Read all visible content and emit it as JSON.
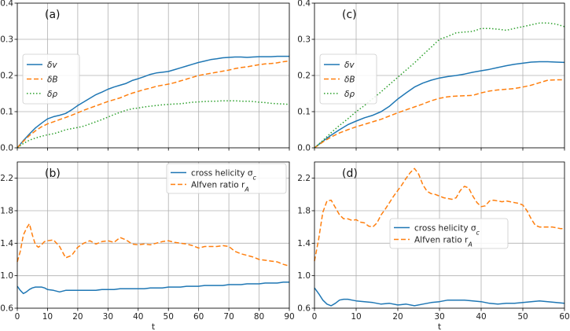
{
  "chart_data": [
    {
      "panel": "a",
      "panel_label": "(a)",
      "type": "line",
      "xlim": [
        0,
        90
      ],
      "ylim": [
        0,
        0.4
      ],
      "xticks": [
        0,
        10,
        20,
        30,
        40,
        50,
        60,
        70,
        80,
        90
      ],
      "yticks": [
        0.0,
        0.1,
        0.2,
        0.3,
        0.4
      ],
      "ytick_labels": [
        "0.0",
        "0.1",
        "0.2",
        "0.3",
        "0.4"
      ],
      "show_xtick_labels": false,
      "xlabel": "",
      "grid": true,
      "legend_position": "center-left",
      "series": [
        {
          "name": "δv",
          "color": "#1f77b4",
          "style": "solid",
          "x": [
            0,
            2,
            4,
            6,
            8,
            10,
            12,
            14,
            16,
            18,
            20,
            22,
            24,
            26,
            28,
            30,
            32,
            34,
            36,
            38,
            40,
            42,
            44,
            46,
            48,
            50,
            52,
            54,
            56,
            58,
            60,
            62,
            64,
            66,
            68,
            70,
            72,
            74,
            76,
            78,
            80,
            82,
            84,
            86,
            88,
            90
          ],
          "y": [
            0,
            0.02,
            0.038,
            0.055,
            0.068,
            0.08,
            0.086,
            0.09,
            0.095,
            0.105,
            0.117,
            0.127,
            0.137,
            0.147,
            0.154,
            0.162,
            0.168,
            0.173,
            0.178,
            0.186,
            0.191,
            0.197,
            0.203,
            0.207,
            0.209,
            0.211,
            0.216,
            0.221,
            0.226,
            0.231,
            0.236,
            0.24,
            0.244,
            0.246,
            0.249,
            0.25,
            0.251,
            0.251,
            0.25,
            0.251,
            0.252,
            0.252,
            0.252,
            0.253,
            0.253,
            0.253
          ]
        },
        {
          "name": "δB",
          "color": "#ff7f0e",
          "style": "dashed",
          "x": [
            0,
            2,
            4,
            6,
            8,
            10,
            12,
            14,
            16,
            18,
            20,
            22,
            24,
            26,
            28,
            30,
            32,
            34,
            36,
            38,
            40,
            42,
            44,
            46,
            48,
            50,
            52,
            54,
            56,
            58,
            60,
            62,
            64,
            66,
            68,
            70,
            72,
            74,
            76,
            78,
            80,
            82,
            84,
            86,
            88,
            90
          ],
          "y": [
            0,
            0.018,
            0.034,
            0.047,
            0.058,
            0.066,
            0.072,
            0.078,
            0.084,
            0.09,
            0.097,
            0.104,
            0.11,
            0.116,
            0.122,
            0.128,
            0.133,
            0.138,
            0.145,
            0.151,
            0.156,
            0.161,
            0.165,
            0.17,
            0.173,
            0.176,
            0.18,
            0.185,
            0.19,
            0.195,
            0.2,
            0.203,
            0.206,
            0.209,
            0.212,
            0.215,
            0.219,
            0.222,
            0.224,
            0.227,
            0.23,
            0.232,
            0.233,
            0.235,
            0.238,
            0.24
          ]
        },
        {
          "name": "δρ",
          "color": "#2ca02c",
          "style": "dotted",
          "x": [
            0,
            2,
            4,
            6,
            8,
            10,
            12,
            14,
            16,
            18,
            20,
            22,
            24,
            26,
            28,
            30,
            32,
            34,
            36,
            38,
            40,
            42,
            44,
            46,
            48,
            50,
            52,
            54,
            56,
            58,
            60,
            62,
            64,
            66,
            68,
            70,
            72,
            74,
            76,
            78,
            80,
            82,
            84,
            86,
            88,
            90
          ],
          "y": [
            0,
            0.012,
            0.021,
            0.027,
            0.032,
            0.036,
            0.039,
            0.044,
            0.05,
            0.053,
            0.056,
            0.06,
            0.066,
            0.072,
            0.078,
            0.085,
            0.092,
            0.098,
            0.104,
            0.108,
            0.11,
            0.113,
            0.115,
            0.117,
            0.119,
            0.12,
            0.121,
            0.122,
            0.124,
            0.126,
            0.127,
            0.128,
            0.129,
            0.129,
            0.13,
            0.13,
            0.13,
            0.129,
            0.129,
            0.128,
            0.126,
            0.125,
            0.123,
            0.122,
            0.121,
            0.12
          ]
        }
      ]
    },
    {
      "panel": "b",
      "panel_label": "(b)",
      "type": "line",
      "xlim": [
        0,
        90
      ],
      "ylim": [
        0.6,
        2.4
      ],
      "xticks": [
        0,
        10,
        20,
        30,
        40,
        50,
        60,
        70,
        80,
        90
      ],
      "yticks": [
        0.6,
        1.0,
        1.4,
        1.8,
        2.2
      ],
      "ytick_labels": [
        "0.6",
        "1.0",
        "1.4",
        "1.8",
        "2.2"
      ],
      "show_xtick_labels": true,
      "xlabel": "t",
      "grid": true,
      "legend_position": "top-right",
      "series": [
        {
          "name": "cross helicity σ_c",
          "color": "#1f77b4",
          "style": "solid",
          "x": [
            0,
            1,
            2,
            3,
            4,
            5,
            6,
            7,
            8,
            9,
            10,
            12,
            14,
            16,
            18,
            20,
            22,
            24,
            26,
            28,
            30,
            32,
            34,
            36,
            38,
            40,
            42,
            44,
            46,
            48,
            50,
            52,
            54,
            56,
            58,
            60,
            62,
            64,
            66,
            68,
            70,
            72,
            74,
            76,
            78,
            80,
            82,
            84,
            86,
            88,
            90
          ],
          "y": [
            0.87,
            0.82,
            0.78,
            0.8,
            0.83,
            0.85,
            0.86,
            0.86,
            0.86,
            0.85,
            0.83,
            0.82,
            0.8,
            0.82,
            0.82,
            0.82,
            0.82,
            0.82,
            0.82,
            0.83,
            0.83,
            0.83,
            0.84,
            0.84,
            0.84,
            0.84,
            0.84,
            0.85,
            0.85,
            0.85,
            0.86,
            0.86,
            0.86,
            0.87,
            0.87,
            0.87,
            0.88,
            0.88,
            0.88,
            0.88,
            0.89,
            0.89,
            0.89,
            0.9,
            0.9,
            0.9,
            0.91,
            0.91,
            0.91,
            0.92,
            0.92
          ]
        },
        {
          "name": "Alfven ratio r_A",
          "color": "#ff7f0e",
          "style": "dashed",
          "x": [
            0,
            1,
            2,
            3,
            4,
            5,
            6,
            7,
            8,
            9,
            10,
            12,
            14,
            16,
            18,
            20,
            22,
            24,
            26,
            28,
            30,
            32,
            34,
            36,
            38,
            40,
            42,
            44,
            46,
            48,
            50,
            52,
            54,
            56,
            58,
            60,
            62,
            64,
            66,
            68,
            70,
            72,
            74,
            76,
            78,
            80,
            82,
            84,
            86,
            88,
            90
          ],
          "y": [
            1.17,
            1.3,
            1.5,
            1.58,
            1.64,
            1.5,
            1.38,
            1.35,
            1.38,
            1.42,
            1.43,
            1.44,
            1.36,
            1.22,
            1.25,
            1.35,
            1.4,
            1.43,
            1.39,
            1.42,
            1.43,
            1.41,
            1.47,
            1.44,
            1.39,
            1.38,
            1.39,
            1.38,
            1.4,
            1.42,
            1.43,
            1.41,
            1.4,
            1.39,
            1.37,
            1.34,
            1.36,
            1.36,
            1.36,
            1.37,
            1.36,
            1.3,
            1.27,
            1.25,
            1.23,
            1.2,
            1.19,
            1.18,
            1.17,
            1.14,
            1.12
          ]
        }
      ]
    },
    {
      "panel": "c",
      "panel_label": "(c)",
      "type": "line",
      "xlim": [
        0,
        60
      ],
      "ylim": [
        0,
        0.4
      ],
      "xticks": [
        0,
        10,
        20,
        30,
        40,
        50,
        60
      ],
      "yticks": [
        0.0,
        0.1,
        0.2,
        0.3,
        0.4
      ],
      "ytick_labels": [
        "0.0",
        "0.1",
        "0.2",
        "0.3",
        "0.4"
      ],
      "show_xtick_labels": false,
      "xlabel": "",
      "grid": true,
      "legend_position": "center-left",
      "series": [
        {
          "name": "δv",
          "color": "#1f77b4",
          "style": "solid",
          "x": [
            0,
            2,
            4,
            6,
            8,
            10,
            12,
            14,
            16,
            18,
            20,
            22,
            24,
            26,
            28,
            30,
            32,
            34,
            36,
            38,
            40,
            42,
            44,
            46,
            48,
            50,
            52,
            54,
            56,
            58,
            60
          ],
          "y": [
            0,
            0.018,
            0.035,
            0.05,
            0.064,
            0.074,
            0.083,
            0.09,
            0.1,
            0.115,
            0.135,
            0.152,
            0.168,
            0.179,
            0.187,
            0.193,
            0.197,
            0.2,
            0.204,
            0.209,
            0.213,
            0.217,
            0.222,
            0.227,
            0.231,
            0.234,
            0.237,
            0.238,
            0.238,
            0.237,
            0.236
          ]
        },
        {
          "name": "δB",
          "color": "#ff7f0e",
          "style": "dashed",
          "x": [
            0,
            2,
            4,
            6,
            8,
            10,
            12,
            14,
            16,
            18,
            20,
            22,
            24,
            26,
            28,
            30,
            32,
            34,
            36,
            38,
            40,
            42,
            44,
            46,
            48,
            50,
            52,
            54,
            56,
            58,
            60
          ],
          "y": [
            0,
            0.016,
            0.03,
            0.041,
            0.05,
            0.058,
            0.065,
            0.072,
            0.079,
            0.088,
            0.097,
            0.105,
            0.113,
            0.121,
            0.13,
            0.137,
            0.141,
            0.143,
            0.144,
            0.145,
            0.152,
            0.157,
            0.16,
            0.162,
            0.164,
            0.168,
            0.173,
            0.18,
            0.187,
            0.188,
            0.188
          ]
        },
        {
          "name": "δρ",
          "color": "#2ca02c",
          "style": "dotted",
          "x": [
            0,
            2,
            4,
            6,
            8,
            10,
            12,
            14,
            16,
            18,
            20,
            22,
            24,
            26,
            28,
            30,
            32,
            34,
            36,
            38,
            40,
            42,
            44,
            46,
            48,
            50,
            52,
            54,
            56,
            58,
            60
          ],
          "y": [
            0,
            0.02,
            0.042,
            0.062,
            0.08,
            0.1,
            0.117,
            0.136,
            0.155,
            0.175,
            0.195,
            0.215,
            0.235,
            0.257,
            0.278,
            0.3,
            0.308,
            0.318,
            0.32,
            0.322,
            0.33,
            0.33,
            0.328,
            0.325,
            0.33,
            0.335,
            0.34,
            0.345,
            0.345,
            0.342,
            0.335
          ]
        }
      ]
    },
    {
      "panel": "d",
      "panel_label": "(d)",
      "type": "line",
      "xlim": [
        0,
        60
      ],
      "ylim": [
        0.6,
        2.4
      ],
      "xticks": [
        0,
        10,
        20,
        30,
        40,
        50,
        60
      ],
      "yticks": [
        0.6,
        1.0,
        1.4,
        1.8,
        2.2
      ],
      "ytick_labels": [
        "0.6",
        "1.0",
        "1.4",
        "1.8",
        "2.2"
      ],
      "show_xtick_labels": true,
      "xlabel": "t",
      "grid": true,
      "legend_position": "center",
      "series": [
        {
          "name": "cross helicity σ_c",
          "color": "#1f77b4",
          "style": "solid",
          "x": [
            0,
            1,
            2,
            3,
            4,
            5,
            6,
            7,
            8,
            9,
            10,
            12,
            14,
            16,
            18,
            20,
            22,
            24,
            26,
            28,
            30,
            32,
            34,
            36,
            38,
            40,
            42,
            44,
            46,
            48,
            50,
            52,
            54,
            56,
            58,
            60
          ],
          "y": [
            0.85,
            0.78,
            0.7,
            0.65,
            0.63,
            0.66,
            0.7,
            0.71,
            0.71,
            0.7,
            0.69,
            0.68,
            0.67,
            0.65,
            0.66,
            0.64,
            0.65,
            0.63,
            0.65,
            0.67,
            0.68,
            0.7,
            0.7,
            0.7,
            0.69,
            0.68,
            0.66,
            0.65,
            0.66,
            0.66,
            0.67,
            0.68,
            0.69,
            0.68,
            0.67,
            0.66
          ]
        },
        {
          "name": "Alfven ratio r_A",
          "color": "#ff7f0e",
          "style": "dashed",
          "x": [
            0,
            1,
            2,
            3,
            4,
            5,
            6,
            7,
            8,
            9,
            10,
            11,
            12,
            13,
            14,
            15,
            16,
            17,
            18,
            19,
            20,
            21,
            22,
            23,
            24,
            25,
            26,
            27,
            28,
            29,
            30,
            31,
            32,
            33,
            34,
            35,
            36,
            37,
            38,
            39,
            40,
            41,
            42,
            43,
            44,
            45,
            46,
            47,
            48,
            49,
            50,
            51,
            52,
            53,
            54,
            55,
            56,
            57,
            58,
            59,
            60
          ],
          "y": [
            1.18,
            1.45,
            1.78,
            1.92,
            1.93,
            1.84,
            1.75,
            1.7,
            1.7,
            1.68,
            1.69,
            1.66,
            1.65,
            1.61,
            1.6,
            1.65,
            1.75,
            1.82,
            1.9,
            1.98,
            2.05,
            2.12,
            2.2,
            2.27,
            2.32,
            2.25,
            2.12,
            2.04,
            2.01,
            2.0,
            1.98,
            1.96,
            1.95,
            1.94,
            1.96,
            2.05,
            2.1,
            2.08,
            1.98,
            1.9,
            1.85,
            1.86,
            1.92,
            1.93,
            1.92,
            1.91,
            1.92,
            1.91,
            1.9,
            1.89,
            1.87,
            1.8,
            1.7,
            1.62,
            1.6,
            1.6,
            1.6,
            1.6,
            1.59,
            1.58,
            1.58
          ]
        }
      ]
    }
  ]
}
